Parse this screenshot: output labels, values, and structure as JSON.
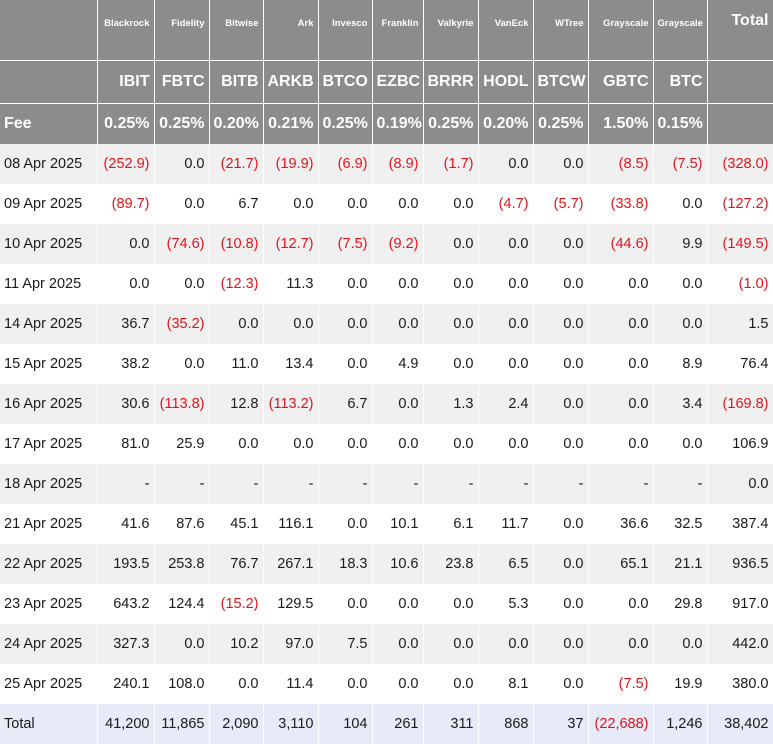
{
  "columns": [
    {
      "issuer": "Blackrock",
      "ticker": "IBIT",
      "fee": "0.25%"
    },
    {
      "issuer": "Fidelity",
      "ticker": "FBTC",
      "fee": "0.25%"
    },
    {
      "issuer": "Bitwise",
      "ticker": "BITB",
      "fee": "0.20%"
    },
    {
      "issuer": "Ark",
      "ticker": "ARKB",
      "fee": "0.21%"
    },
    {
      "issuer": "Invesco",
      "ticker": "BTCO",
      "fee": "0.25%"
    },
    {
      "issuer": "Franklin",
      "ticker": "EZBC",
      "fee": "0.19%"
    },
    {
      "issuer": "Valkyrie",
      "ticker": "BRRR",
      "fee": "0.25%"
    },
    {
      "issuer": "VanEck",
      "ticker": "HODL",
      "fee": "0.20%"
    },
    {
      "issuer": "WTree",
      "ticker": "BTCW",
      "fee": "0.25%"
    },
    {
      "issuer": "Grayscale",
      "ticker": "GBTC",
      "fee": "1.50%"
    },
    {
      "issuer": "Grayscale",
      "ticker": "BTC",
      "fee": "0.15%"
    }
  ],
  "total_header": "Total",
  "fee_label": "Fee",
  "rows": [
    {
      "date": "08 Apr 2025",
      "cells": [
        "(252.9)",
        "0.0",
        "(21.7)",
        "(19.9)",
        "(6.9)",
        "(8.9)",
        "(1.7)",
        "0.0",
        "0.0",
        "(8.5)",
        "(7.5)"
      ],
      "total": "(328.0)"
    },
    {
      "date": "09 Apr 2025",
      "cells": [
        "(89.7)",
        "0.0",
        "6.7",
        "0.0",
        "0.0",
        "0.0",
        "0.0",
        "(4.7)",
        "(5.7)",
        "(33.8)",
        "0.0"
      ],
      "total": "(127.2)"
    },
    {
      "date": "10 Apr 2025",
      "cells": [
        "0.0",
        "(74.6)",
        "(10.8)",
        "(12.7)",
        "(7.5)",
        "(9.2)",
        "0.0",
        "0.0",
        "0.0",
        "(44.6)",
        "9.9"
      ],
      "total": "(149.5)"
    },
    {
      "date": "11 Apr 2025",
      "cells": [
        "0.0",
        "0.0",
        "(12.3)",
        "11.3",
        "0.0",
        "0.0",
        "0.0",
        "0.0",
        "0.0",
        "0.0",
        "0.0"
      ],
      "total": "(1.0)"
    },
    {
      "date": "14 Apr 2025",
      "cells": [
        "36.7",
        "(35.2)",
        "0.0",
        "0.0",
        "0.0",
        "0.0",
        "0.0",
        "0.0",
        "0.0",
        "0.0",
        "0.0"
      ],
      "total": "1.5"
    },
    {
      "date": "15 Apr 2025",
      "cells": [
        "38.2",
        "0.0",
        "11.0",
        "13.4",
        "0.0",
        "4.9",
        "0.0",
        "0.0",
        "0.0",
        "0.0",
        "8.9"
      ],
      "total": "76.4"
    },
    {
      "date": "16 Apr 2025",
      "cells": [
        "30.6",
        "(113.8)",
        "12.8",
        "(113.2)",
        "6.7",
        "0.0",
        "1.3",
        "2.4",
        "0.0",
        "0.0",
        "3.4"
      ],
      "total": "(169.8)"
    },
    {
      "date": "17 Apr 2025",
      "cells": [
        "81.0",
        "25.9",
        "0.0",
        "0.0",
        "0.0",
        "0.0",
        "0.0",
        "0.0",
        "0.0",
        "0.0",
        "0.0"
      ],
      "total": "106.9"
    },
    {
      "date": "18 Apr 2025",
      "cells": [
        "-",
        "-",
        "-",
        "-",
        "-",
        "-",
        "-",
        "-",
        "-",
        "-",
        "-"
      ],
      "total": "0.0"
    },
    {
      "date": "21 Apr 2025",
      "cells": [
        "41.6",
        "87.6",
        "45.1",
        "116.1",
        "0.0",
        "10.1",
        "6.1",
        "11.7",
        "0.0",
        "36.6",
        "32.5"
      ],
      "total": "387.4"
    },
    {
      "date": "22 Apr 2025",
      "cells": [
        "193.5",
        "253.8",
        "76.7",
        "267.1",
        "18.3",
        "10.6",
        "23.8",
        "6.5",
        "0.0",
        "65.1",
        "21.1"
      ],
      "total": "936.5"
    },
    {
      "date": "23 Apr 2025",
      "cells": [
        "643.2",
        "124.4",
        "(15.2)",
        "129.5",
        "0.0",
        "0.0",
        "0.0",
        "5.3",
        "0.0",
        "0.0",
        "29.8"
      ],
      "total": "917.0"
    },
    {
      "date": "24 Apr 2025",
      "cells": [
        "327.3",
        "0.0",
        "10.2",
        "97.0",
        "7.5",
        "0.0",
        "0.0",
        "0.0",
        "0.0",
        "0.0",
        "0.0"
      ],
      "total": "442.0"
    },
    {
      "date": "25 Apr 2025",
      "cells": [
        "240.1",
        "108.0",
        "0.0",
        "11.4",
        "0.0",
        "0.0",
        "0.0",
        "8.1",
        "0.0",
        "(7.5)",
        "19.9"
      ],
      "total": "380.0"
    }
  ],
  "totals_row": {
    "label": "Total",
    "cells": [
      "41,200",
      "11,865",
      "2,090",
      "3,110",
      "104",
      "261",
      "311",
      "868",
      "37",
      "(22,688)",
      "1,246"
    ],
    "total": "38,402"
  },
  "colors": {
    "header_bg": "#8c8c8c",
    "negative": "#e0151b",
    "row_alt": "#f0f0f0",
    "total_row_bg": "#e6ebf7"
  }
}
